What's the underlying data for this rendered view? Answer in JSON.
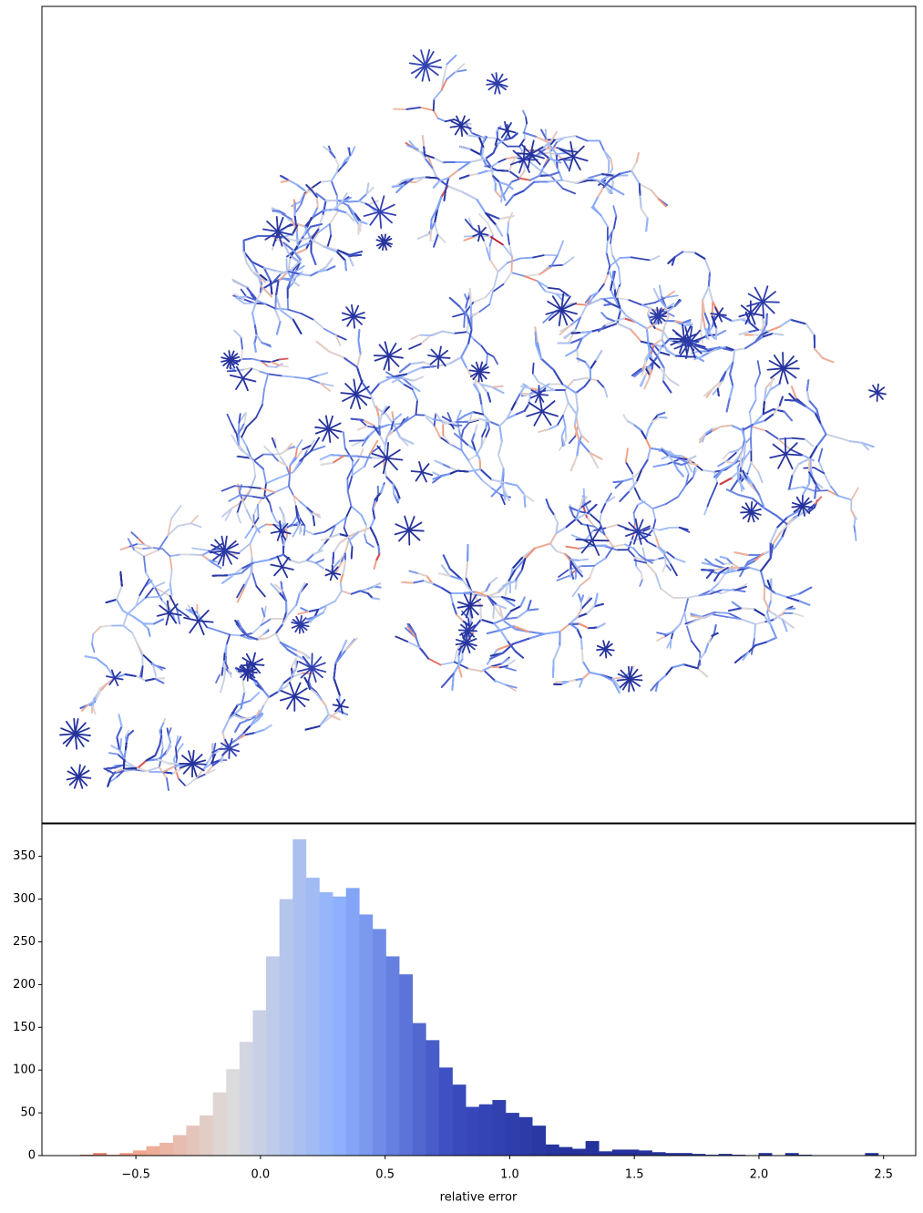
{
  "chart_data": {
    "type": "histogram",
    "xlabel": "relative error",
    "bins": [
      -0.725,
      -0.6716,
      -0.6182,
      -0.5648,
      -0.5114,
      -0.458,
      -0.4046,
      -0.3512,
      -0.2978,
      -0.2444,
      -0.191,
      -0.1376,
      -0.0842,
      -0.0308,
      0.0226,
      0.076,
      0.1294,
      0.1828,
      0.2362,
      0.2896,
      0.343,
      0.3964,
      0.4498,
      0.5032,
      0.5566,
      0.61,
      0.6634,
      0.7168,
      0.7702,
      0.8236,
      0.877,
      0.9304,
      0.9838,
      1.0372,
      1.0906,
      1.144,
      1.1974,
      1.2508,
      1.3042,
      1.3576,
      1.411,
      1.4644,
      1.5178,
      1.5712,
      1.6246,
      1.678,
      1.7314,
      1.7848,
      1.8382,
      1.8916,
      1.945,
      1.9984,
      2.0518,
      2.1052,
      2.1586,
      2.212,
      2.2654,
      2.3188,
      2.3722,
      2.4256,
      2.479
    ],
    "values": [
      1,
      3,
      1,
      3,
      6,
      11,
      15,
      24,
      35,
      47,
      74,
      101,
      133,
      170,
      233,
      300,
      370,
      325,
      308,
      303,
      313,
      282,
      265,
      233,
      212,
      155,
      135,
      103,
      83,
      57,
      60,
      65,
      50,
      45,
      35,
      13,
      10,
      8,
      17,
      5,
      7,
      7,
      6,
      4,
      3,
      3,
      2,
      1,
      2,
      1,
      0,
      3,
      0,
      3,
      1,
      0,
      0,
      0,
      0,
      3
    ],
    "xlim": [
      -0.877,
      2.629
    ],
    "ylim": [
      0,
      388
    ],
    "xticks": [
      {
        "value": -0.5,
        "label": "−0.5"
      },
      {
        "value": 0,
        "label": "0.0"
      },
      0.5,
      {
        "value": 1,
        "label": "1.0"
      },
      1.5,
      {
        "value": 2,
        "label": "2.0"
      },
      2.5
    ],
    "yticks": [
      0,
      50,
      100,
      150,
      200,
      250,
      300,
      350
    ],
    "colormap": [
      "#b40426",
      "#f49a7b",
      "#dddcdc",
      "#8db0fe",
      "#3b4cc0",
      "#26339c"
    ],
    "color_range": [
      -1,
      1.2
    ]
  }
}
